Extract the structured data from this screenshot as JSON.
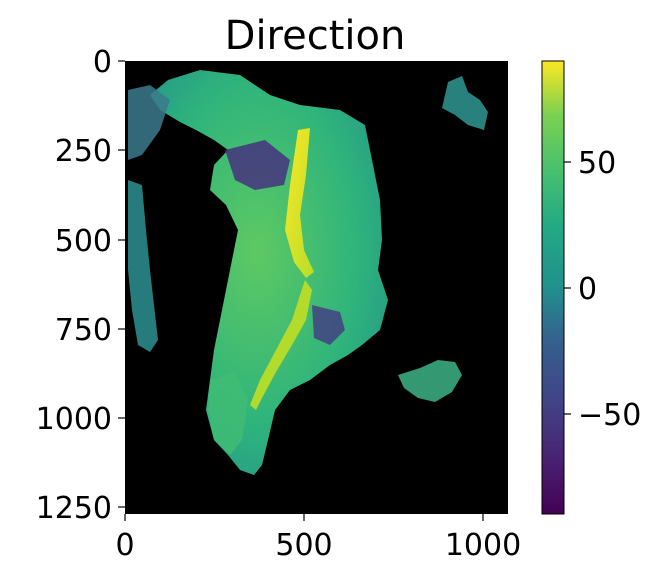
{
  "chart_data": {
    "type": "heatmap",
    "title": "Direction",
    "xlabel": "",
    "ylabel": "",
    "xlim": [
      0,
      1070
    ],
    "ylim": [
      1270,
      0
    ],
    "x_ticks": [
      0,
      500,
      1000
    ],
    "y_ticks": [
      0,
      250,
      500,
      750,
      1000,
      1250
    ],
    "colormap": "viridis",
    "background_color": "#000000",
    "colorbar": {
      "min": -90,
      "max": 90,
      "ticks": [
        50,
        0,
        -50
      ],
      "tick_labels": [
        "50",
        "0",
        "−50"
      ]
    },
    "grid": false
  }
}
